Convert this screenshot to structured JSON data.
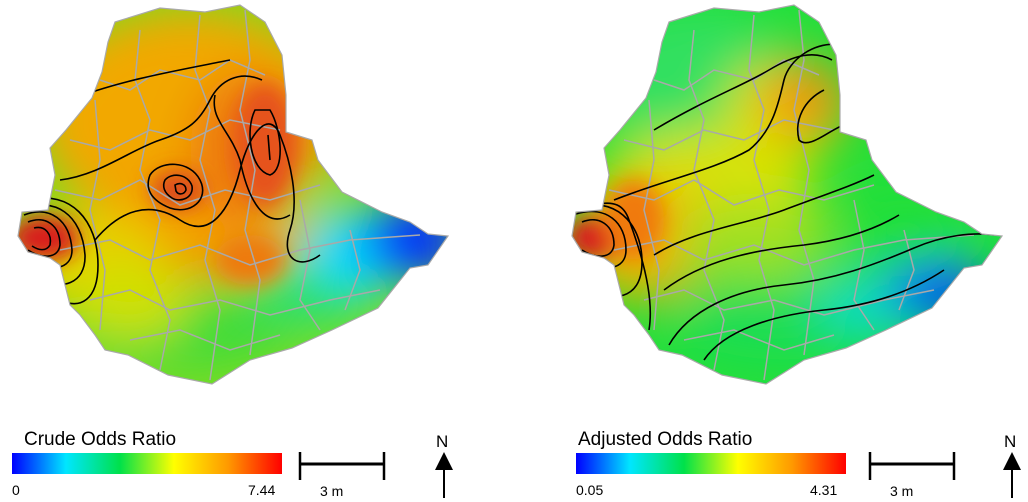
{
  "maps": [
    {
      "legend_title": "Crude Odds Ratio",
      "min_label": "0",
      "max_label": "7.44",
      "scale_label": "3 m",
      "north_label": "N"
    },
    {
      "legend_title": "Adjusted Odds Ratio",
      "min_label": "0.05",
      "max_label": "4.31",
      "scale_label": "3 m",
      "north_label": "N"
    }
  ],
  "colors": {
    "ramp": [
      "#0000ff",
      "#00e6ff",
      "#00e14a",
      "#ffff00",
      "#ff9900",
      "#ff0000"
    ],
    "boundary": "#a9a9a9",
    "contour": "#000000"
  }
}
